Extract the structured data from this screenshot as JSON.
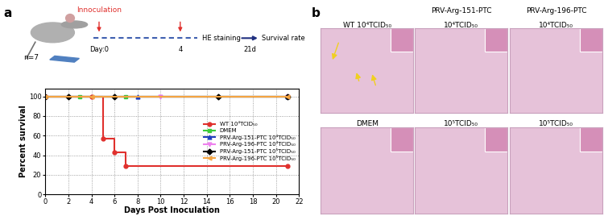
{
  "panel_labels": [
    "a",
    "b"
  ],
  "schematic": {
    "n": "n=7",
    "event": "Innoculation",
    "day0": "Day:0",
    "day4": "4",
    "staining": "HE staining",
    "end": "21d",
    "outcome": "Survival rate"
  },
  "chart_data": {
    "type": "line",
    "x_label": "Days Post Inoculation",
    "y_label": "Percent survival",
    "xlim": [
      0,
      22
    ],
    "xticks": [
      0,
      2,
      4,
      6,
      8,
      10,
      12,
      14,
      16,
      18,
      20,
      22
    ],
    "ylim": [
      0,
      108
    ],
    "yticks": [
      0,
      20,
      40,
      60,
      80,
      100
    ],
    "grid": true,
    "legend": "center right",
    "line_style": "steps",
    "series": [
      {
        "name": "WT 10⁴TCID₅₀",
        "color": "#e0302d",
        "marker": "circle",
        "x": [
          0,
          4,
          5,
          6,
          7,
          21
        ],
        "values": [
          100,
          100,
          57.14,
          42.86,
          28.57,
          28.57
        ]
      },
      {
        "name": "DMEM",
        "color": "#3ccc3c",
        "marker": "square",
        "x": [
          0,
          3,
          7,
          21
        ],
        "values": [
          100,
          100,
          100,
          100
        ]
      },
      {
        "name": "PRV-Arg-151-PTC 10⁴TCID₅₀",
        "color": "#1f3fbf",
        "marker": "triangle_up",
        "x": [
          0,
          8,
          21
        ],
        "values": [
          100,
          100,
          100
        ]
      },
      {
        "name": "PRV-Arg-196-PTC 10⁴TCID₅₀",
        "color": "#ee82ee",
        "marker": "triangle_down",
        "x": [
          0,
          10,
          21
        ],
        "values": [
          100,
          100,
          100
        ]
      },
      {
        "name": "PRV-Arg-151-PTC 10⁵TCID₅₀",
        "color": "#000000",
        "marker": "diamond",
        "x": [
          0,
          2,
          6,
          15,
          21
        ],
        "values": [
          100,
          100,
          100,
          100,
          100
        ]
      },
      {
        "name": "PRV-Arg-196-PTC 10⁵TCID₅₀",
        "color": "#f4a442",
        "marker": "triangle_left",
        "x": [
          0,
          4,
          21
        ],
        "values": [
          100,
          100,
          100
        ]
      }
    ]
  },
  "histology": {
    "column_headers": [
      "PRV-Arg-151-PTC",
      "PRV-Arg-196-PTC"
    ],
    "rows": [
      [
        "WT 10⁴TCID₅₀",
        "10⁴TCID₅₀",
        "10⁴TCID₅₀"
      ],
      [
        "DMEM",
        "10⁵TCID₅₀",
        "10⁵TCID₅₀"
      ]
    ]
  }
}
